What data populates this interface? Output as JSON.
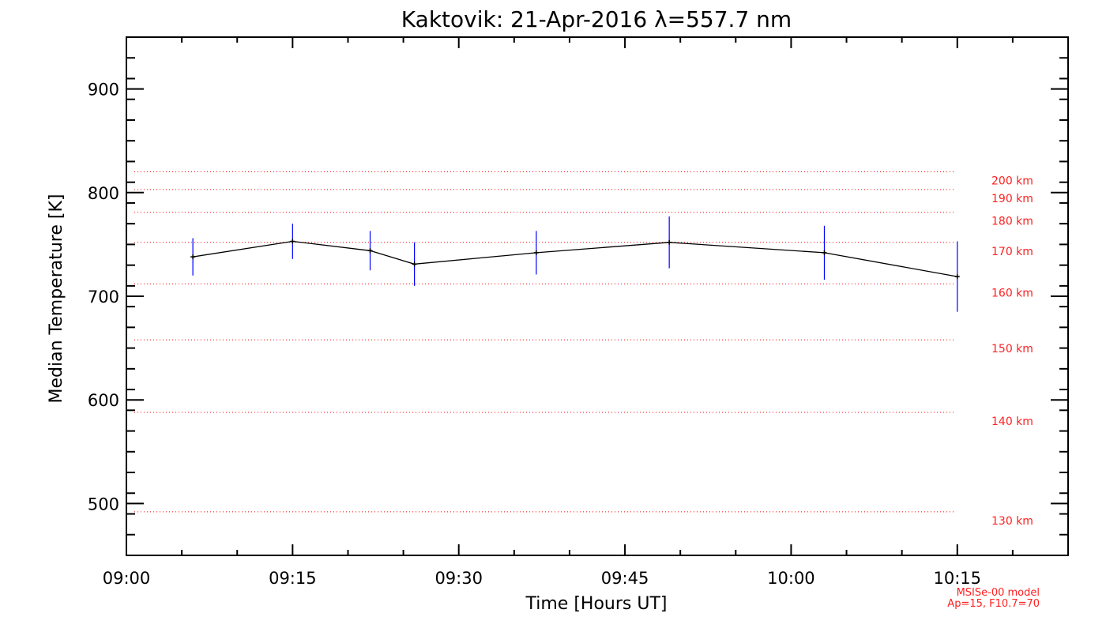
{
  "chart_data": {
    "type": "line",
    "title": "Kaktovik: 21-Apr-2016 λ=557.7 nm",
    "xlabel": "Time [Hours UT]",
    "ylabel": "Median Temperature [K]",
    "xlim": [
      "09:00",
      "10:25"
    ],
    "ylim": [
      450,
      950
    ],
    "x_ticks": [
      "09:00",
      "09:15",
      "09:30",
      "09:45",
      "10:00",
      "10:15"
    ],
    "y_ticks": [
      500,
      600,
      700,
      800,
      900
    ],
    "series": [
      {
        "color": "#000000",
        "errorbar_color": "#0000ff",
        "x": [
          "09:06",
          "09:15",
          "09:22",
          "09:26",
          "09:37",
          "09:49",
          "10:03",
          "10:15"
        ],
        "y": [
          738,
          753,
          744,
          731,
          742,
          752,
          742,
          719
        ],
        "error": [
          18,
          17,
          19,
          21,
          21,
          25,
          26,
          34
        ]
      }
    ],
    "reference_lines": {
      "color": "#ff0000",
      "style": "dotted",
      "items": [
        {
          "label": "200 km",
          "value": 820
        },
        {
          "label": "190 km",
          "value": 803
        },
        {
          "label": "180 km",
          "value": 781
        },
        {
          "label": "170 km",
          "value": 752
        },
        {
          "label": "160 km",
          "value": 712
        },
        {
          "label": "150 km",
          "value": 658
        },
        {
          "label": "140 km",
          "value": 588
        },
        {
          "label": "130 km",
          "value": 492
        }
      ]
    },
    "annotations": [
      "MSISe-00 model",
      "Ap=15, F10.7=70"
    ],
    "grid": false
  }
}
